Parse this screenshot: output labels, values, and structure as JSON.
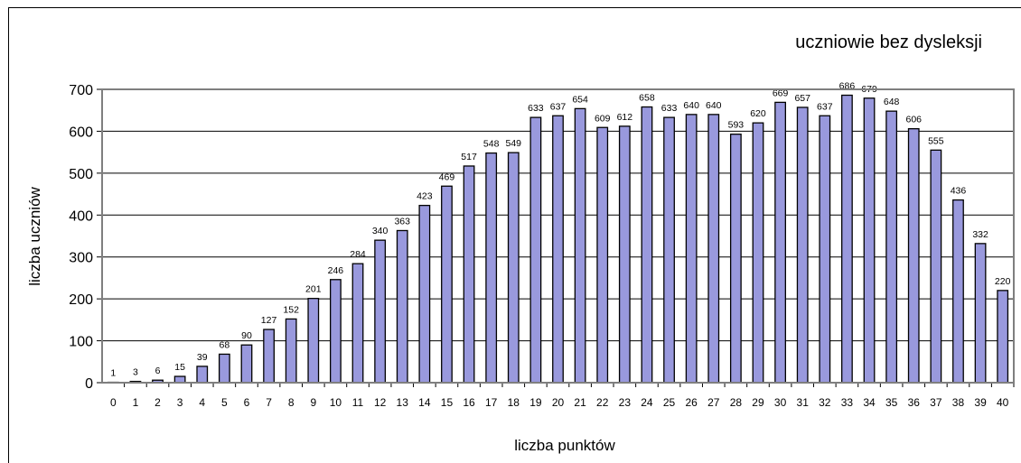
{
  "chart_data": {
    "type": "bar",
    "title": "uczniowie bez dysleksji",
    "xlabel": "liczba punktów",
    "ylabel": "liczba uczniów",
    "ylim": [
      0,
      700
    ],
    "yticks": [
      0,
      100,
      200,
      300,
      400,
      500,
      600,
      700
    ],
    "grid": true,
    "legend": "none",
    "colors": {
      "bar_fill": "#9999dd",
      "bar_stroke": "#000000",
      "plot_border": "#7f7f7f",
      "grid": "#000000"
    },
    "categories": [
      "0",
      "1",
      "2",
      "3",
      "4",
      "5",
      "6",
      "7",
      "8",
      "9",
      "10",
      "11",
      "12",
      "13",
      "14",
      "15",
      "16",
      "17",
      "18",
      "19",
      "20",
      "21",
      "22",
      "23",
      "24",
      "25",
      "26",
      "27",
      "28",
      "29",
      "30",
      "31",
      "32",
      "33",
      "34",
      "35",
      "36",
      "37",
      "38",
      "39",
      "40"
    ],
    "values": [
      1,
      3,
      6,
      15,
      39,
      68,
      90,
      127,
      152,
      201,
      246,
      284,
      340,
      363,
      423,
      469,
      517,
      548,
      549,
      633,
      637,
      654,
      609,
      612,
      658,
      633,
      640,
      640,
      593,
      620,
      669,
      657,
      637,
      686,
      679,
      648,
      606,
      555,
      436,
      332,
      220
    ]
  }
}
